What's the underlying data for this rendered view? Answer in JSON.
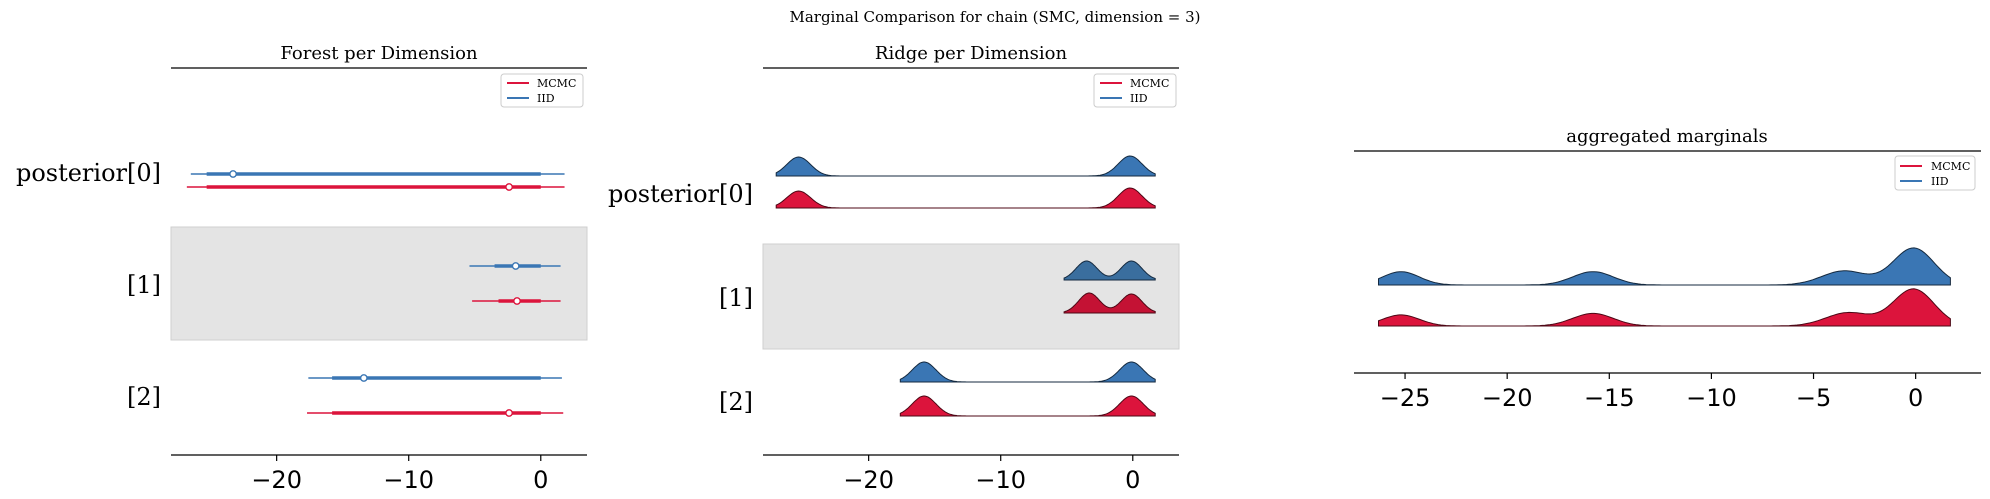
{
  "figure": {
    "suptitle": "Marginal Comparison for chain (SMC, dimension = 3)"
  },
  "colors": {
    "mcmc": "#dc143c",
    "iid": "#3a76b4",
    "mcmc_ridge_mid": "#c41234",
    "iid_ridge_mid": "#3a6e9e",
    "band": "#e4e4e4"
  },
  "chart_data": [
    {
      "type": "forest",
      "title": "Forest per Dimension",
      "xlim": [
        -28,
        3.5
      ],
      "xticks": [
        -20,
        -10,
        0
      ],
      "tick_labels": [
        "−20",
        "−10",
        "0"
      ],
      "rows": [
        "posterior[0]",
        "[1]",
        "[2]"
      ],
      "legend": {
        "placement": "top-right",
        "entries": [
          "MCMC",
          "IID"
        ]
      },
      "series": [
        {
          "name": "IID",
          "color": "#3a76b4",
          "intervals": [
            {
              "row": 0,
              "hdi94": [
                -26.5,
                1.8
              ],
              "hdi50": [
                -25.3,
                0
              ],
              "median": -23.3
            },
            {
              "row": 1,
              "hdi94": [
                -5.4,
                1.5
              ],
              "hdi50": [
                -3.5,
                0
              ],
              "median": -1.9
            },
            {
              "row": 2,
              "hdi94": [
                -17.6,
                1.6
              ],
              "hdi50": [
                -15.8,
                0
              ],
              "median": -13.4
            }
          ]
        },
        {
          "name": "MCMC",
          "color": "#dc143c",
          "intervals": [
            {
              "row": 0,
              "hdi94": [
                -26.8,
                1.8
              ],
              "hdi50": [
                -25.3,
                0
              ],
              "median": -2.4
            },
            {
              "row": 1,
              "hdi94": [
                -5.2,
                1.5
              ],
              "hdi50": [
                -3.2,
                0
              ],
              "median": -1.8
            },
            {
              "row": 2,
              "hdi94": [
                -17.7,
                1.7
              ],
              "hdi50": [
                -15.8,
                0
              ],
              "median": -2.4
            }
          ]
        }
      ]
    },
    {
      "type": "ridge",
      "title": "Ridge per Dimension",
      "xlim": [
        -28,
        3.5
      ],
      "xticks": [
        -20,
        -10,
        0
      ],
      "tick_labels": [
        "−20",
        "−10",
        "0"
      ],
      "rows": [
        "posterior[0]",
        "[1]",
        "[2]"
      ],
      "legend": {
        "placement": "top-right",
        "entries": [
          "MCMC",
          "IID"
        ]
      },
      "series": [
        {
          "name": "IID",
          "color": "#3a76b4",
          "ridges": [
            {
              "row": 0,
              "range": [
                -27,
                1.7
              ],
              "peaks": [
                {
                  "mu": -25.3,
                  "sd": 0.9,
                  "h": 0.95
                },
                {
                  "mu": -0.2,
                  "sd": 0.9,
                  "h": 1.0
                }
              ]
            },
            {
              "row": 1,
              "range": [
                -5.2,
                1.7
              ],
              "peaks": [
                {
                  "mu": -3.5,
                  "sd": 0.8,
                  "h": 0.95
                },
                {
                  "mu": -0.1,
                  "sd": 0.8,
                  "h": 0.95
                }
              ]
            },
            {
              "row": 2,
              "range": [
                -17.6,
                1.7
              ],
              "peaks": [
                {
                  "mu": -15.8,
                  "sd": 0.9,
                  "h": 1.0
                },
                {
                  "mu": -0.1,
                  "sd": 0.9,
                  "h": 1.0
                }
              ]
            }
          ]
        },
        {
          "name": "MCMC",
          "color": "#dc143c",
          "ridges": [
            {
              "row": 0,
              "range": [
                -27,
                1.7
              ],
              "peaks": [
                {
                  "mu": -25.3,
                  "sd": 0.9,
                  "h": 0.85
                },
                {
                  "mu": -0.2,
                  "sd": 0.9,
                  "h": 1.0
                }
              ]
            },
            {
              "row": 1,
              "range": [
                -5.2,
                1.7
              ],
              "peaks": [
                {
                  "mu": -3.3,
                  "sd": 0.8,
                  "h": 1.0
                },
                {
                  "mu": -0.1,
                  "sd": 0.8,
                  "h": 0.95
                }
              ]
            },
            {
              "row": 2,
              "range": [
                -17.6,
                1.7
              ],
              "peaks": [
                {
                  "mu": -15.8,
                  "sd": 0.9,
                  "h": 1.0
                },
                {
                  "mu": -0.1,
                  "sd": 0.9,
                  "h": 1.0
                }
              ]
            }
          ]
        }
      ]
    },
    {
      "type": "ridge",
      "title": "aggregated marginals",
      "xlim": [
        -27.5,
        3.2
      ],
      "xticks": [
        -25,
        -20,
        -15,
        -10,
        -5,
        0
      ],
      "tick_labels": [
        "−25",
        "−20",
        "−15",
        "−10",
        "−5",
        "0"
      ],
      "legend": {
        "placement": "top-right",
        "entries": [
          "MCMC",
          "IID"
        ]
      },
      "series": [
        {
          "name": "IID",
          "color": "#3a76b4",
          "range": [
            -26.3,
            1.7
          ],
          "peaks": [
            {
              "mu": -25.2,
              "sd": 0.9,
              "h": 0.36
            },
            {
              "mu": -15.8,
              "sd": 1.0,
              "h": 0.36
            },
            {
              "mu": -3.5,
              "sd": 1.1,
              "h": 0.38
            },
            {
              "mu": -0.1,
              "sd": 1.0,
              "h": 1.0
            }
          ]
        },
        {
          "name": "MCMC",
          "color": "#dc143c",
          "range": [
            -26.3,
            1.7
          ],
          "peaks": [
            {
              "mu": -25.2,
              "sd": 0.9,
              "h": 0.3
            },
            {
              "mu": -15.8,
              "sd": 1.0,
              "h": 0.34
            },
            {
              "mu": -3.3,
              "sd": 1.1,
              "h": 0.36
            },
            {
              "mu": -0.1,
              "sd": 1.0,
              "h": 1.0
            }
          ]
        }
      ]
    }
  ]
}
